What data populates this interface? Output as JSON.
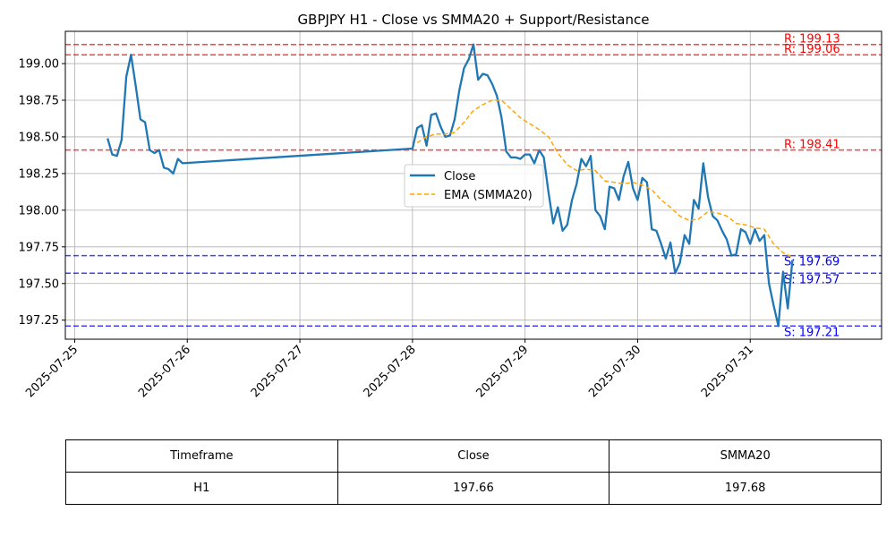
{
  "chart_data": {
    "type": "line",
    "title": "GBPJPY H1 - Close vs SMMA20 + Support/Resistance",
    "xlabel": "",
    "ylabel": "",
    "grid": true,
    "legend_position": "center-right",
    "x_ticks": [
      "2025-07-25",
      "2025-07-26",
      "2025-07-27",
      "2025-07-28",
      "2025-07-29",
      "2025-07-30",
      "2025-07-31"
    ],
    "y_ticks": [
      "197.25",
      "197.50",
      "197.75",
      "198.00",
      "198.25",
      "198.50",
      "198.75",
      "199.00"
    ],
    "xlim": [
      "2025-07-24T22:00",
      "2025-08-01T04:00"
    ],
    "ylim": [
      197.12,
      199.22
    ],
    "series": [
      {
        "name": "Close",
        "color": "#1f77b4",
        "style": "solid",
        "points": [
          [
            "2025-07-25T07:00",
            198.49
          ],
          [
            "2025-07-25T08:00",
            198.38
          ],
          [
            "2025-07-25T09:00",
            198.37
          ],
          [
            "2025-07-25T10:00",
            198.48
          ],
          [
            "2025-07-25T11:00",
            198.91
          ],
          [
            "2025-07-25T12:00",
            199.06
          ],
          [
            "2025-07-25T13:00",
            198.85
          ],
          [
            "2025-07-25T14:00",
            198.62
          ],
          [
            "2025-07-25T15:00",
            198.6
          ],
          [
            "2025-07-25T16:00",
            198.41
          ],
          [
            "2025-07-25T17:00",
            198.39
          ],
          [
            "2025-07-25T18:00",
            198.41
          ],
          [
            "2025-07-25T19:00",
            198.29
          ],
          [
            "2025-07-25T20:00",
            198.28
          ],
          [
            "2025-07-25T21:00",
            198.25
          ],
          [
            "2025-07-25T22:00",
            198.35
          ],
          [
            "2025-07-25T23:00",
            198.32
          ],
          [
            "2025-07-28T00:00",
            198.42
          ],
          [
            "2025-07-28T01:00",
            198.56
          ],
          [
            "2025-07-28T02:00",
            198.58
          ],
          [
            "2025-07-28T03:00",
            198.44
          ],
          [
            "2025-07-28T04:00",
            198.65
          ],
          [
            "2025-07-28T05:00",
            198.66
          ],
          [
            "2025-07-28T06:00",
            198.57
          ],
          [
            "2025-07-28T07:00",
            198.5
          ],
          [
            "2025-07-28T08:00",
            198.51
          ],
          [
            "2025-07-28T09:00",
            198.62
          ],
          [
            "2025-07-28T10:00",
            198.82
          ],
          [
            "2025-07-28T11:00",
            198.97
          ],
          [
            "2025-07-28T12:00",
            199.03
          ],
          [
            "2025-07-28T13:00",
            199.13
          ],
          [
            "2025-07-28T14:00",
            198.89
          ],
          [
            "2025-07-28T15:00",
            198.93
          ],
          [
            "2025-07-28T16:00",
            198.92
          ],
          [
            "2025-07-28T17:00",
            198.86
          ],
          [
            "2025-07-28T18:00",
            198.78
          ],
          [
            "2025-07-28T19:00",
            198.63
          ],
          [
            "2025-07-28T20:00",
            198.4
          ],
          [
            "2025-07-28T21:00",
            198.36
          ],
          [
            "2025-07-28T22:00",
            198.36
          ],
          [
            "2025-07-28T23:00",
            198.35
          ],
          [
            "2025-07-29T00:00",
            198.38
          ],
          [
            "2025-07-29T01:00",
            198.38
          ],
          [
            "2025-07-29T02:00",
            198.32
          ],
          [
            "2025-07-29T03:00",
            198.41
          ],
          [
            "2025-07-29T04:00",
            198.36
          ],
          [
            "2025-07-29T05:00",
            198.12
          ],
          [
            "2025-07-29T06:00",
            197.91
          ],
          [
            "2025-07-29T07:00",
            198.02
          ],
          [
            "2025-07-29T08:00",
            197.86
          ],
          [
            "2025-07-29T09:00",
            197.9
          ],
          [
            "2025-07-29T10:00",
            198.07
          ],
          [
            "2025-07-29T11:00",
            198.18
          ],
          [
            "2025-07-29T12:00",
            198.35
          ],
          [
            "2025-07-29T13:00",
            198.3
          ],
          [
            "2025-07-29T14:00",
            198.37
          ],
          [
            "2025-07-29T15:00",
            198.0
          ],
          [
            "2025-07-29T16:00",
            197.96
          ],
          [
            "2025-07-29T17:00",
            197.87
          ],
          [
            "2025-07-29T18:00",
            198.16
          ],
          [
            "2025-07-29T19:00",
            198.15
          ],
          [
            "2025-07-29T20:00",
            198.07
          ],
          [
            "2025-07-29T21:00",
            198.23
          ],
          [
            "2025-07-29T22:00",
            198.33
          ],
          [
            "2025-07-29T23:00",
            198.15
          ],
          [
            "2025-07-30T00:00",
            198.07
          ],
          [
            "2025-07-30T01:00",
            198.22
          ],
          [
            "2025-07-30T02:00",
            198.19
          ],
          [
            "2025-07-30T03:00",
            197.87
          ],
          [
            "2025-07-30T04:00",
            197.86
          ],
          [
            "2025-07-30T05:00",
            197.77
          ],
          [
            "2025-07-30T06:00",
            197.67
          ],
          [
            "2025-07-30T07:00",
            197.78
          ],
          [
            "2025-07-30T08:00",
            197.57
          ],
          [
            "2025-07-30T09:00",
            197.64
          ],
          [
            "2025-07-30T10:00",
            197.83
          ],
          [
            "2025-07-30T11:00",
            197.77
          ],
          [
            "2025-07-30T12:00",
            198.07
          ],
          [
            "2025-07-30T13:00",
            198.01
          ],
          [
            "2025-07-30T14:00",
            198.32
          ],
          [
            "2025-07-30T15:00",
            198.09
          ],
          [
            "2025-07-30T16:00",
            197.96
          ],
          [
            "2025-07-30T17:00",
            197.93
          ],
          [
            "2025-07-30T18:00",
            197.86
          ],
          [
            "2025-07-30T19:00",
            197.8
          ],
          [
            "2025-07-30T20:00",
            197.69
          ],
          [
            "2025-07-30T21:00",
            197.7
          ],
          [
            "2025-07-30T22:00",
            197.87
          ],
          [
            "2025-07-30T23:00",
            197.85
          ],
          [
            "2025-07-31T00:00",
            197.77
          ],
          [
            "2025-07-31T01:00",
            197.87
          ],
          [
            "2025-07-31T02:00",
            197.79
          ],
          [
            "2025-07-31T03:00",
            197.83
          ],
          [
            "2025-07-31T04:00",
            197.5
          ],
          [
            "2025-07-31T05:00",
            197.35
          ],
          [
            "2025-07-31T06:00",
            197.21
          ],
          [
            "2025-07-31T07:00",
            197.58
          ],
          [
            "2025-07-31T08:00",
            197.33
          ],
          [
            "2025-07-31T09:00",
            197.66
          ]
        ]
      },
      {
        "name": "EMA (SMMA20)",
        "color": "#ffa500",
        "style": "dashed",
        "points": [
          [
            "2025-07-28T01:00",
            198.46
          ],
          [
            "2025-07-28T03:00",
            198.5
          ],
          [
            "2025-07-28T05:00",
            198.52
          ],
          [
            "2025-07-28T07:00",
            198.52
          ],
          [
            "2025-07-28T09:00",
            198.53
          ],
          [
            "2025-07-28T11:00",
            198.6
          ],
          [
            "2025-07-28T13:00",
            198.68
          ],
          [
            "2025-07-28T15:00",
            198.72
          ],
          [
            "2025-07-28T17:00",
            198.75
          ],
          [
            "2025-07-28T19:00",
            198.75
          ],
          [
            "2025-07-28T21:00",
            198.69
          ],
          [
            "2025-07-28T23:00",
            198.63
          ],
          [
            "2025-07-29T01:00",
            198.59
          ],
          [
            "2025-07-29T03:00",
            198.55
          ],
          [
            "2025-07-29T05:00",
            198.5
          ],
          [
            "2025-07-29T07:00",
            198.39
          ],
          [
            "2025-07-29T09:00",
            198.31
          ],
          [
            "2025-07-29T11:00",
            198.27
          ],
          [
            "2025-07-29T13:00",
            198.28
          ],
          [
            "2025-07-29T15:00",
            198.27
          ],
          [
            "2025-07-29T17:00",
            198.2
          ],
          [
            "2025-07-29T19:00",
            198.19
          ],
          [
            "2025-07-29T21:00",
            198.18
          ],
          [
            "2025-07-29T23:00",
            198.19
          ],
          [
            "2025-07-30T01:00",
            198.17
          ],
          [
            "2025-07-30T03:00",
            198.14
          ],
          [
            "2025-07-30T05:00",
            198.07
          ],
          [
            "2025-07-30T07:00",
            198.02
          ],
          [
            "2025-07-30T09:00",
            197.96
          ],
          [
            "2025-07-30T11:00",
            197.93
          ],
          [
            "2025-07-30T13:00",
            197.94
          ],
          [
            "2025-07-30T15:00",
            197.99
          ],
          [
            "2025-07-30T17:00",
            197.98
          ],
          [
            "2025-07-30T19:00",
            197.96
          ],
          [
            "2025-07-30T21:00",
            197.91
          ],
          [
            "2025-07-30T23:00",
            197.9
          ],
          [
            "2025-07-31T01:00",
            197.88
          ],
          [
            "2025-07-31T03:00",
            197.87
          ],
          [
            "2025-07-31T05:00",
            197.77
          ],
          [
            "2025-07-31T07:00",
            197.71
          ],
          [
            "2025-07-31T09:00",
            197.68
          ]
        ]
      }
    ],
    "levels": [
      {
        "kind": "resistance",
        "value": 199.13,
        "label": "R: 199.13",
        "color": "#ff0000"
      },
      {
        "kind": "resistance",
        "value": 199.06,
        "label": "R: 199.06",
        "color": "#ff0000"
      },
      {
        "kind": "resistance",
        "value": 198.41,
        "label": "R: 198.41",
        "color": "#ff0000"
      },
      {
        "kind": "support",
        "value": 197.69,
        "label": "S: 197.69",
        "color": "#0000ff"
      },
      {
        "kind": "support",
        "value": 197.57,
        "label": "S: 197.57",
        "color": "#0000ff"
      },
      {
        "kind": "support",
        "value": 197.21,
        "label": "S: 197.21",
        "color": "#0000ff"
      }
    ]
  },
  "table": {
    "headers": [
      "Timeframe",
      "Close",
      "SMMA20"
    ],
    "row": [
      "H1",
      "197.66",
      "197.68"
    ]
  }
}
